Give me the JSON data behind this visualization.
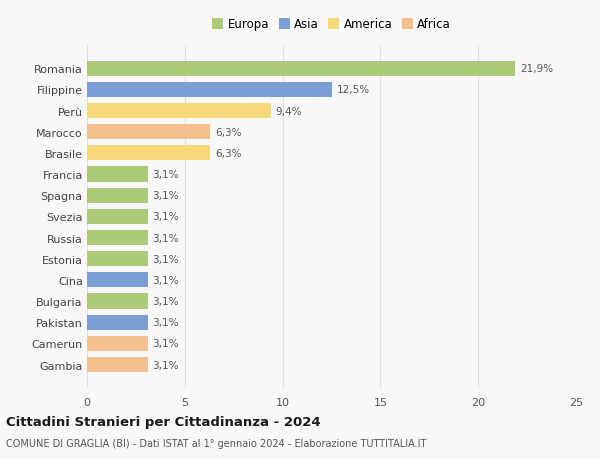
{
  "categories": [
    "Gambia",
    "Camerun",
    "Pakistan",
    "Bulgaria",
    "Cina",
    "Estonia",
    "Russia",
    "Svezia",
    "Spagna",
    "Francia",
    "Brasile",
    "Marocco",
    "Perù",
    "Filippine",
    "Romania"
  ],
  "values": [
    3.1,
    3.1,
    3.1,
    3.1,
    3.1,
    3.1,
    3.1,
    3.1,
    3.1,
    3.1,
    6.3,
    6.3,
    9.4,
    12.5,
    21.9
  ],
  "labels": [
    "3,1%",
    "3,1%",
    "3,1%",
    "3,1%",
    "3,1%",
    "3,1%",
    "3,1%",
    "3,1%",
    "3,1%",
    "3,1%",
    "6,3%",
    "6,3%",
    "9,4%",
    "12,5%",
    "21,9%"
  ],
  "colors": [
    "#f5c090",
    "#f5c090",
    "#7b9fd4",
    "#adc97a",
    "#7b9fd4",
    "#adc97a",
    "#adc97a",
    "#adc97a",
    "#adc97a",
    "#adc97a",
    "#f5d97a",
    "#f5c090",
    "#f5d97a",
    "#7b9fd4",
    "#adc97a"
  ],
  "legend_labels": [
    "Europa",
    "Asia",
    "America",
    "Africa"
  ],
  "legend_colors": [
    "#adc97a",
    "#7b9fd4",
    "#f5d97a",
    "#f5c090"
  ],
  "title": "Cittadini Stranieri per Cittadinanza - 2024",
  "subtitle": "COMUNE DI GRAGLIA (BI) - Dati ISTAT al 1° gennaio 2024 - Elaborazione TUTTITALIA.IT",
  "xlim": [
    0,
    25
  ],
  "xticks": [
    0,
    5,
    10,
    15,
    20,
    25
  ],
  "background_color": "#f8f8f8",
  "grid_color": "#e0e0e0"
}
